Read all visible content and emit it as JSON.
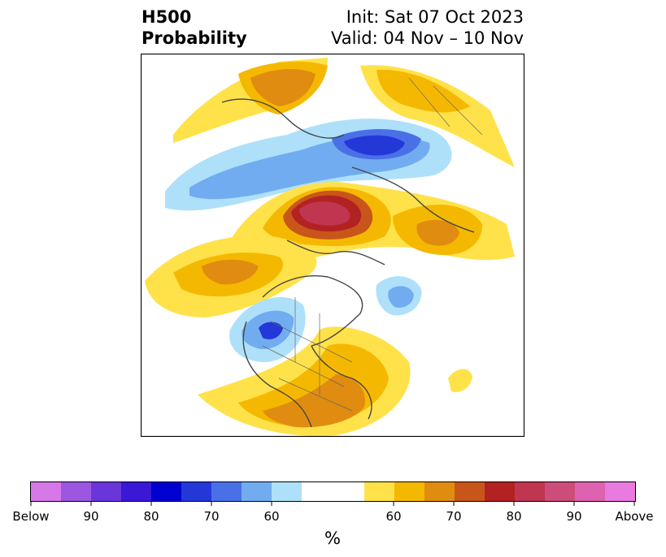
{
  "header": {
    "variable": "H500",
    "quantity": "Probability",
    "init": "Init: Sat 07 Oct 2023",
    "valid": "Valid: 04 Nov – 10 Nov"
  },
  "map": {
    "projection": "polar-stereographic",
    "region": "northern-hemisphere",
    "background_color": "#ffffff",
    "coastline_color": "#444444",
    "border_color": "#666666"
  },
  "colorbar": {
    "unit": "%",
    "colors": [
      "#d678e8",
      "#9b57e0",
      "#6a36d9",
      "#3a18d6",
      "#0000d0",
      "#2438d8",
      "#4a70e8",
      "#72acf0",
      "#aee0fa",
      "#ffffff",
      "#ffe24a",
      "#f5b800",
      "#e08c10",
      "#c8561a",
      "#b22222",
      "#c03550",
      "#cc4d7a",
      "#dd62b0",
      "#e87ae0"
    ],
    "tick_labels": [
      "Below",
      "90",
      "80",
      "70",
      "60",
      "60",
      "70",
      "80",
      "90",
      "Above"
    ]
  }
}
